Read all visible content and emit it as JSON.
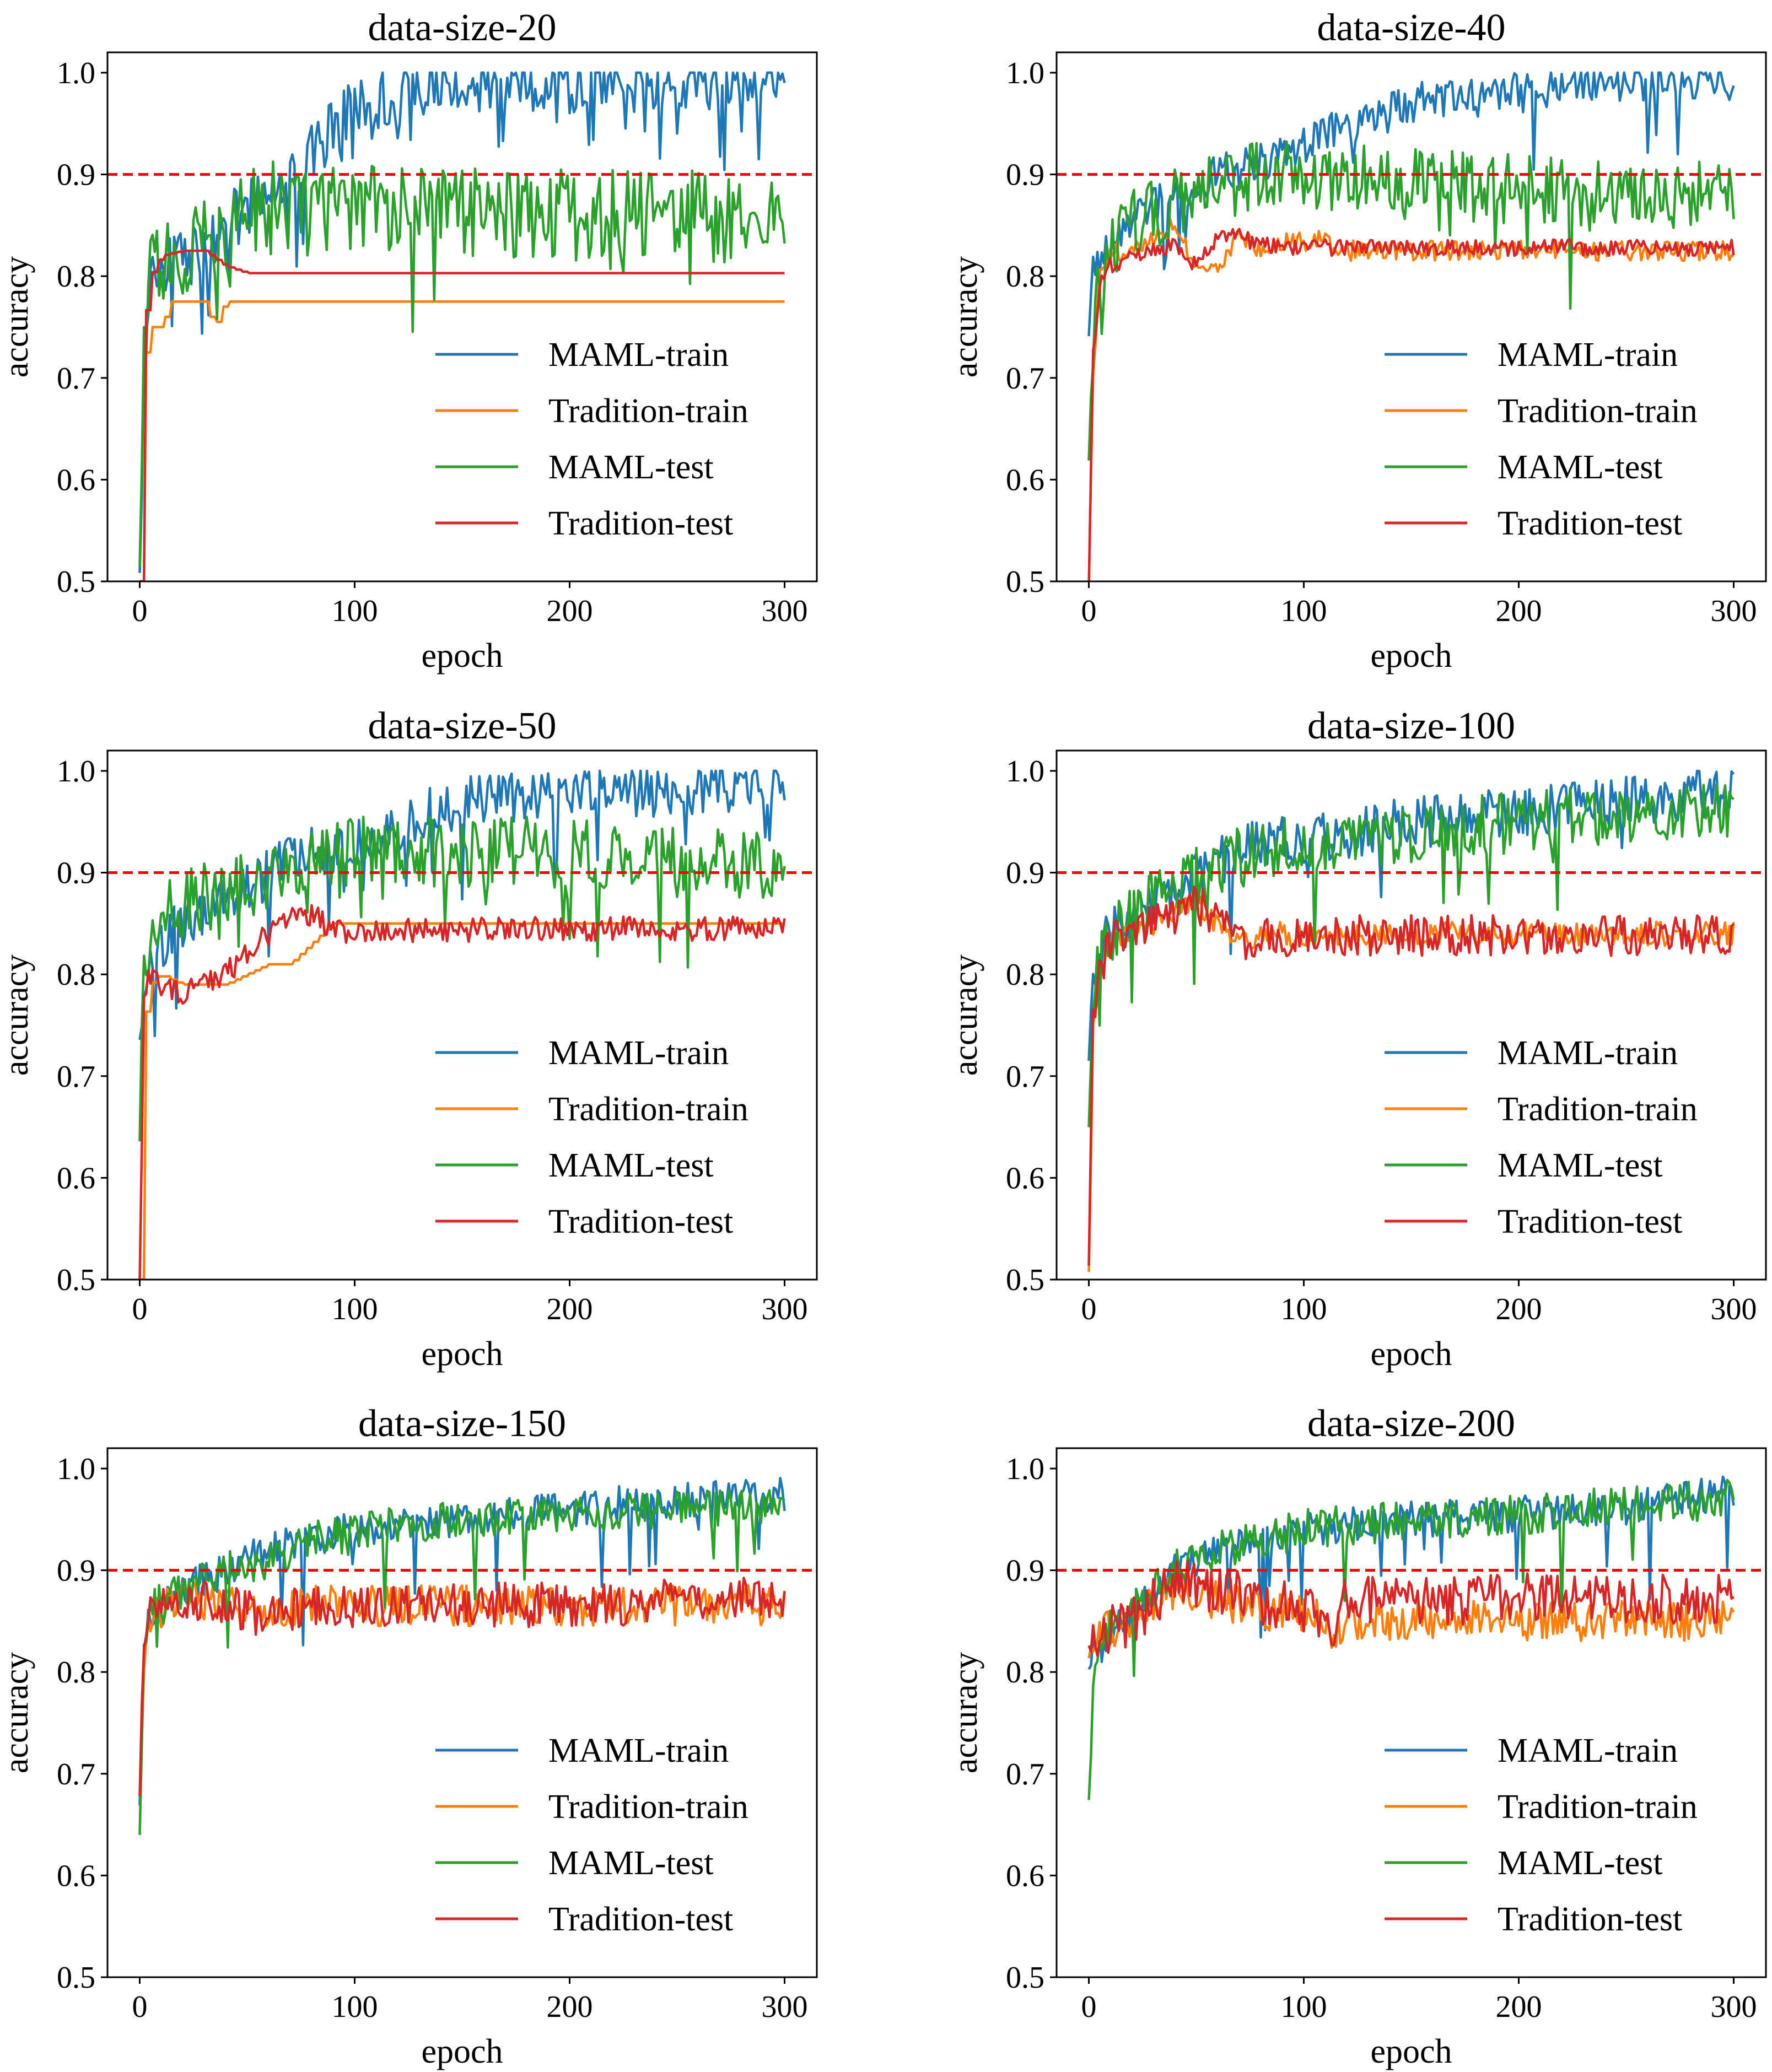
{
  "chart_data": [
    {
      "type": "line",
      "title": "data-size-20",
      "xlabel": "epoch",
      "ylabel": "accuracy",
      "xlim": [
        -15,
        315
      ],
      "ylim": [
        0.5,
        1.02
      ],
      "xticks": [
        "0",
        "100",
        "200",
        "300"
      ],
      "yticks": [
        "0.5",
        "0.6",
        "0.7",
        "0.8",
        "0.9",
        "1.0"
      ],
      "threshold": 0.9,
      "legend_position": "lower-right",
      "series": [
        {
          "name": "MAML-train",
          "color": "#1f77b4",
          "noise": 0.03,
          "dips": 0.1,
          "x": [
            0,
            2,
            5,
            10,
            20,
            30,
            40,
            60,
            80,
            100,
            150,
            200,
            250,
            300
          ],
          "y": [
            0.5,
            0.72,
            0.8,
            0.81,
            0.82,
            0.82,
            0.85,
            0.88,
            0.92,
            0.97,
            0.99,
            0.99,
            0.99,
            1.0
          ]
        },
        {
          "name": "Tradition-train",
          "color": "#ff7f0e",
          "noise": 0.0,
          "dips": 0.0,
          "x": [
            0,
            2,
            4,
            10,
            15,
            30,
            35,
            40,
            100,
            200,
            300
          ],
          "y": [
            0.5,
            0.7,
            0.75,
            0.75,
            0.775,
            0.775,
            0.75,
            0.775,
            0.775,
            0.775,
            0.775
          ]
        },
        {
          "name": "MAML-test",
          "color": "#2ca02c",
          "noise": 0.045,
          "dips": 0.05,
          "x": [
            0,
            2,
            5,
            10,
            30,
            40,
            50,
            100,
            150,
            200,
            250,
            300
          ],
          "y": [
            0.5,
            0.72,
            0.8,
            0.82,
            0.83,
            0.84,
            0.87,
            0.865,
            0.865,
            0.86,
            0.86,
            0.855
          ]
        },
        {
          "name": "Tradition-test",
          "color": "#d62728",
          "noise": 0.0,
          "dips": 0.0,
          "x": [
            0,
            2,
            5,
            10,
            20,
            30,
            40,
            50,
            100,
            200,
            300
          ],
          "y": [
            0.5,
            0.75,
            0.8,
            0.82,
            0.825,
            0.825,
            0.81,
            0.803,
            0.803,
            0.803,
            0.803
          ]
        }
      ]
    },
    {
      "type": "line",
      "title": "data-size-40",
      "xlabel": "epoch",
      "ylabel": "accuracy",
      "xlim": [
        -15,
        315
      ],
      "ylim": [
        0.5,
        1.02
      ],
      "xticks": [
        "0",
        "100",
        "200",
        "300"
      ],
      "yticks": [
        "0.5",
        "0.6",
        "0.7",
        "0.8",
        "0.9",
        "1.0"
      ],
      "threshold": 0.9,
      "legend_position": "lower-right",
      "series": [
        {
          "name": "MAML-train",
          "color": "#1f77b4",
          "noise": 0.02,
          "dips": 0.04,
          "x": [
            0,
            2,
            5,
            10,
            20,
            40,
            60,
            80,
            100,
            150,
            200,
            250,
            300
          ],
          "y": [
            0.76,
            0.8,
            0.82,
            0.84,
            0.86,
            0.88,
            0.9,
            0.91,
            0.93,
            0.97,
            0.98,
            0.99,
            0.99
          ]
        },
        {
          "name": "Tradition-train",
          "color": "#ff7f0e",
          "noise": 0.01,
          "dips": 0.0,
          "x": [
            0,
            2,
            5,
            10,
            20,
            30,
            40,
            50,
            60,
            70,
            80,
            90,
            110,
            115,
            200,
            300
          ],
          "y": [
            0.5,
            0.7,
            0.8,
            0.82,
            0.83,
            0.84,
            0.85,
            0.81,
            0.81,
            0.84,
            0.825,
            0.835,
            0.835,
            0.825,
            0.825,
            0.825
          ]
        },
        {
          "name": "MAML-test",
          "color": "#2ca02c",
          "noise": 0.035,
          "dips": 0.06,
          "x": [
            0,
            2,
            5,
            10,
            20,
            40,
            60,
            80,
            100,
            150,
            200,
            250,
            300
          ],
          "y": [
            0.65,
            0.75,
            0.8,
            0.83,
            0.85,
            0.87,
            0.89,
            0.9,
            0.9,
            0.89,
            0.885,
            0.88,
            0.88
          ]
        },
        {
          "name": "Tradition-test",
          "color": "#d62728",
          "noise": 0.008,
          "dips": 0.0,
          "x": [
            0,
            2,
            5,
            10,
            20,
            40,
            50,
            60,
            70,
            80,
            100,
            200,
            300
          ],
          "y": [
            0.5,
            0.72,
            0.79,
            0.81,
            0.82,
            0.83,
            0.81,
            0.84,
            0.84,
            0.83,
            0.828,
            0.828,
            0.828
          ]
        }
      ]
    },
    {
      "type": "line",
      "title": "data-size-50",
      "xlabel": "epoch",
      "ylabel": "accuracy",
      "xlim": [
        -15,
        315
      ],
      "ylim": [
        0.5,
        1.02
      ],
      "xticks": [
        "0",
        "100",
        "200",
        "300"
      ],
      "yticks": [
        "0.5",
        "0.6",
        "0.7",
        "0.8",
        "0.9",
        "1.0"
      ],
      "threshold": 0.9,
      "legend_position": "lower-right",
      "series": [
        {
          "name": "MAML-train",
          "color": "#1f77b4",
          "noise": 0.025,
          "dips": 0.05,
          "x": [
            0,
            2,
            5,
            10,
            20,
            40,
            60,
            80,
            100,
            150,
            200,
            250,
            300
          ],
          "y": [
            0.74,
            0.78,
            0.81,
            0.83,
            0.85,
            0.87,
            0.9,
            0.92,
            0.93,
            0.97,
            0.98,
            0.98,
            0.99
          ]
        },
        {
          "name": "Tradition-train",
          "color": "#ff7f0e",
          "noise": 0.0,
          "dips": 0.0,
          "x": [
            0,
            2,
            5,
            10,
            20,
            40,
            50,
            60,
            70,
            80,
            90,
            100,
            200,
            300
          ],
          "y": [
            0.5,
            0.75,
            0.79,
            0.8,
            0.79,
            0.79,
            0.8,
            0.81,
            0.81,
            0.83,
            0.85,
            0.85,
            0.85,
            0.85
          ]
        },
        {
          "name": "MAML-test",
          "color": "#2ca02c",
          "noise": 0.035,
          "dips": 0.05,
          "x": [
            0,
            2,
            5,
            10,
            20,
            40,
            60,
            80,
            100,
            150,
            200,
            250,
            300
          ],
          "y": [
            0.64,
            0.8,
            0.84,
            0.86,
            0.87,
            0.88,
            0.9,
            0.91,
            0.92,
            0.92,
            0.92,
            0.91,
            0.91
          ]
        },
        {
          "name": "Tradition-test",
          "color": "#d62728",
          "noise": 0.012,
          "dips": 0.0,
          "x": [
            0,
            2,
            5,
            10,
            20,
            30,
            40,
            50,
            60,
            70,
            80,
            90,
            100,
            200,
            300
          ],
          "y": [
            0.5,
            0.78,
            0.8,
            0.79,
            0.78,
            0.79,
            0.8,
            0.82,
            0.84,
            0.86,
            0.86,
            0.843,
            0.843,
            0.845,
            0.845
          ]
        }
      ]
    },
    {
      "type": "line",
      "title": "data-size-100",
      "xlabel": "epoch",
      "ylabel": "accuracy",
      "xlim": [
        -15,
        315
      ],
      "ylim": [
        0.5,
        1.02
      ],
      "xticks": [
        "0",
        "100",
        "200",
        "300"
      ],
      "yticks": [
        "0.5",
        "0.6",
        "0.7",
        "0.8",
        "0.9",
        "1.0"
      ],
      "threshold": 0.9,
      "legend_position": "lower-right",
      "series": [
        {
          "name": "MAML-train",
          "color": "#1f77b4",
          "noise": 0.025,
          "dips": 0.04,
          "x": [
            0,
            2,
            5,
            10,
            20,
            40,
            60,
            80,
            100,
            150,
            200,
            250,
            300
          ],
          "y": [
            0.7,
            0.78,
            0.82,
            0.84,
            0.86,
            0.88,
            0.91,
            0.93,
            0.93,
            0.95,
            0.96,
            0.97,
            0.98
          ]
        },
        {
          "name": "Tradition-train",
          "color": "#ff7f0e",
          "noise": 0.012,
          "dips": 0.0,
          "x": [
            0,
            2,
            5,
            10,
            20,
            30,
            40,
            50,
            60,
            70,
            80,
            85,
            100,
            200,
            300
          ],
          "y": [
            0.5,
            0.75,
            0.8,
            0.83,
            0.84,
            0.85,
            0.86,
            0.87,
            0.85,
            0.83,
            0.84,
            0.84,
            0.838,
            0.84,
            0.84
          ]
        },
        {
          "name": "MAML-test",
          "color": "#2ca02c",
          "noise": 0.03,
          "dips": 0.05,
          "x": [
            0,
            2,
            5,
            10,
            20,
            40,
            60,
            80,
            100,
            150,
            200,
            250,
            300
          ],
          "y": [
            0.63,
            0.78,
            0.82,
            0.84,
            0.86,
            0.88,
            0.91,
            0.92,
            0.93,
            0.94,
            0.95,
            0.96,
            0.965
          ]
        },
        {
          "name": "Tradition-test",
          "color": "#d62728",
          "noise": 0.02,
          "dips": 0.0,
          "x": [
            0,
            2,
            5,
            10,
            20,
            30,
            40,
            50,
            60,
            70,
            80,
            85,
            100,
            200,
            300
          ],
          "y": [
            0.5,
            0.75,
            0.8,
            0.83,
            0.84,
            0.85,
            0.86,
            0.87,
            0.85,
            0.83,
            0.84,
            0.838,
            0.838,
            0.838,
            0.838
          ]
        }
      ]
    },
    {
      "type": "line",
      "title": "data-size-150",
      "xlabel": "epoch",
      "ylabel": "accuracy",
      "xlim": [
        -15,
        315
      ],
      "ylim": [
        0.5,
        1.02
      ],
      "xticks": [
        "0",
        "100",
        "200",
        "300"
      ],
      "yticks": [
        "0.5",
        "0.6",
        "0.7",
        "0.8",
        "0.9",
        "1.0"
      ],
      "threshold": 0.9,
      "legend_position": "lower-right",
      "series": [
        {
          "name": "MAML-train",
          "color": "#1f77b4",
          "noise": 0.018,
          "dips": 0.04,
          "x": [
            0,
            2,
            5,
            10,
            20,
            40,
            60,
            80,
            100,
            150,
            200,
            250,
            300
          ],
          "y": [
            0.68,
            0.82,
            0.86,
            0.87,
            0.88,
            0.9,
            0.92,
            0.93,
            0.94,
            0.95,
            0.96,
            0.97,
            0.975
          ]
        },
        {
          "name": "Tradition-train",
          "color": "#ff7f0e",
          "noise": 0.02,
          "dips": 0.0,
          "x": [
            0,
            2,
            5,
            10,
            20,
            30,
            40,
            50,
            60,
            70,
            80,
            90,
            100,
            200,
            300
          ],
          "y": [
            0.69,
            0.82,
            0.86,
            0.86,
            0.87,
            0.87,
            0.87,
            0.86,
            0.85,
            0.86,
            0.87,
            0.866,
            0.865,
            0.865,
            0.866
          ]
        },
        {
          "name": "MAML-test",
          "color": "#2ca02c",
          "noise": 0.018,
          "dips": 0.04,
          "x": [
            0,
            2,
            5,
            10,
            20,
            40,
            60,
            80,
            100,
            150,
            200,
            250,
            300
          ],
          "y": [
            0.65,
            0.82,
            0.86,
            0.87,
            0.88,
            0.9,
            0.91,
            0.93,
            0.94,
            0.95,
            0.955,
            0.96,
            0.965
          ]
        },
        {
          "name": "Tradition-test",
          "color": "#d62728",
          "noise": 0.022,
          "dips": 0.0,
          "x": [
            0,
            2,
            5,
            10,
            20,
            30,
            40,
            50,
            60,
            70,
            80,
            90,
            100,
            200,
            300
          ],
          "y": [
            0.69,
            0.83,
            0.87,
            0.87,
            0.87,
            0.87,
            0.87,
            0.86,
            0.85,
            0.86,
            0.87,
            0.865,
            0.865,
            0.866,
            0.872
          ]
        }
      ]
    },
    {
      "type": "line",
      "title": "data-size-200",
      "xlabel": "epoch",
      "ylabel": "accuracy",
      "xlim": [
        -15,
        315
      ],
      "ylim": [
        0.5,
        1.02
      ],
      "xticks": [
        "0",
        "100",
        "200",
        "300"
      ],
      "yticks": [
        "0.5",
        "0.6",
        "0.7",
        "0.8",
        "0.9",
        "1.0"
      ],
      "threshold": 0.9,
      "legend_position": "lower-right",
      "series": [
        {
          "name": "MAML-train",
          "color": "#1f77b4",
          "noise": 0.018,
          "dips": 0.04,
          "x": [
            0,
            2,
            5,
            10,
            20,
            40,
            60,
            80,
            100,
            150,
            200,
            250,
            300
          ],
          "y": [
            0.8,
            0.82,
            0.83,
            0.84,
            0.86,
            0.9,
            0.92,
            0.93,
            0.94,
            0.95,
            0.955,
            0.965,
            0.975
          ]
        },
        {
          "name": "Tradition-train",
          "color": "#ff7f0e",
          "noise": 0.02,
          "dips": 0.0,
          "x": [
            0,
            2,
            5,
            10,
            20,
            30,
            40,
            60,
            80,
            100,
            115,
            120,
            200,
            300
          ],
          "y": [
            0.81,
            0.82,
            0.84,
            0.84,
            0.85,
            0.87,
            0.88,
            0.87,
            0.86,
            0.86,
            0.84,
            0.85,
            0.85,
            0.85
          ]
        },
        {
          "name": "MAML-test",
          "color": "#2ca02c",
          "noise": 0.02,
          "dips": 0.04,
          "x": [
            0,
            2,
            5,
            10,
            20,
            40,
            60,
            80,
            100,
            150,
            200,
            250,
            300
          ],
          "y": [
            0.67,
            0.8,
            0.83,
            0.85,
            0.87,
            0.9,
            0.92,
            0.93,
            0.94,
            0.95,
            0.955,
            0.965,
            0.97
          ]
        },
        {
          "name": "Tradition-test",
          "color": "#d62728",
          "noise": 0.025,
          "dips": 0.0,
          "x": [
            0,
            2,
            5,
            10,
            20,
            30,
            40,
            60,
            80,
            100,
            115,
            120,
            200,
            300
          ],
          "y": [
            0.82,
            0.83,
            0.84,
            0.84,
            0.85,
            0.87,
            0.89,
            0.88,
            0.87,
            0.86,
            0.85,
            0.87,
            0.872,
            0.872
          ]
        }
      ]
    }
  ]
}
